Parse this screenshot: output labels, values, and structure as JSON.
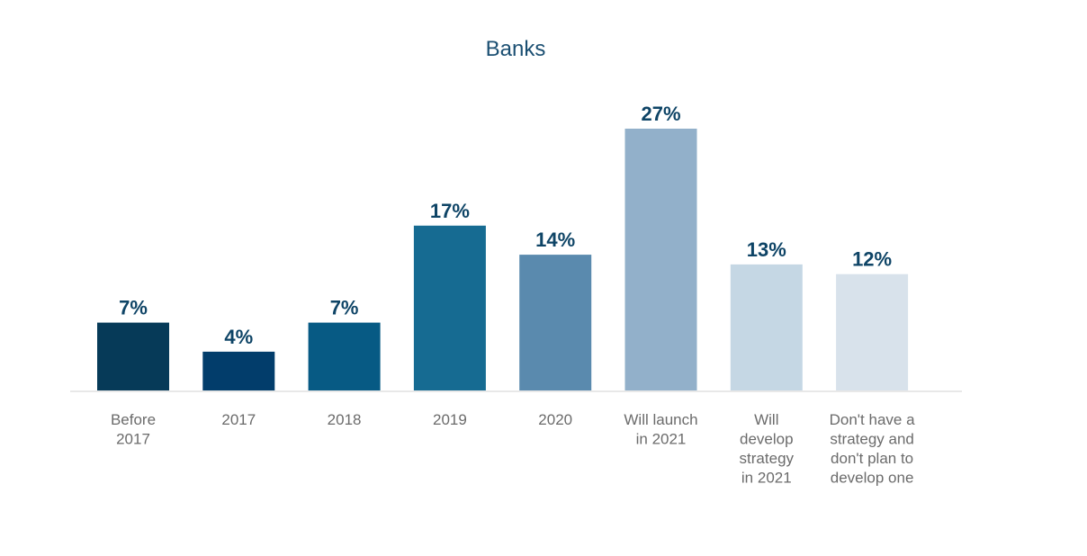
{
  "chart_data": {
    "type": "bar",
    "title": "Banks",
    "xlabel": "",
    "ylabel": "",
    "ylim": [
      0,
      27
    ],
    "grid": false,
    "categories": [
      [
        "Before",
        "2017"
      ],
      [
        "2017"
      ],
      [
        "2018"
      ],
      [
        "2019"
      ],
      [
        "2020"
      ],
      [
        "Will launch",
        "in 2021"
      ],
      [
        "Will",
        "develop",
        "strategy",
        "in 2021"
      ],
      [
        "Don't have a",
        "strategy and",
        "don't plan to",
        "develop one"
      ]
    ],
    "values": [
      7,
      4,
      7,
      17,
      14,
      27,
      13,
      12
    ],
    "value_labels": [
      "7%",
      "4%",
      "7%",
      "17%",
      "14%",
      "27%",
      "13%",
      "12%"
    ],
    "bar_colors": [
      "#063a58",
      "#023d6b",
      "#075a84",
      "#166b92",
      "#5a8aae",
      "#92b0ca",
      "#c5d7e4",
      "#d8e2eb"
    ]
  }
}
